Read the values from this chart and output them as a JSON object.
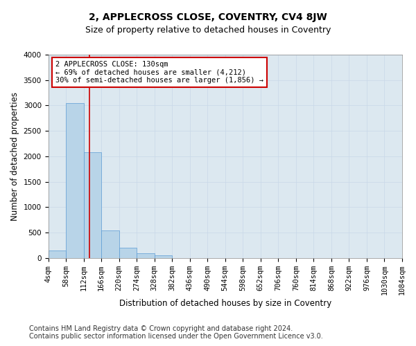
{
  "title": "2, APPLECROSS CLOSE, COVENTRY, CV4 8JW",
  "subtitle": "Size of property relative to detached houses in Coventry",
  "xlabel": "Distribution of detached houses by size in Coventry",
  "ylabel": "Number of detached properties",
  "footer_line1": "Contains HM Land Registry data © Crown copyright and database right 2024.",
  "footer_line2": "Contains public sector information licensed under the Open Government Licence v3.0.",
  "property_size": 130,
  "annotation_line1": "2 APPLECROSS CLOSE: 130sqm",
  "annotation_line2": "← 69% of detached houses are smaller (4,212)",
  "annotation_line3": "30% of semi-detached houses are larger (1,856) →",
  "bin_edges": [
    4,
    58,
    112,
    166,
    220,
    274,
    328,
    382,
    436,
    490,
    544,
    598,
    652,
    706,
    760,
    814,
    868,
    922,
    976,
    1030,
    1084
  ],
  "bin_counts": [
    150,
    3050,
    2080,
    540,
    210,
    90,
    55,
    0,
    0,
    0,
    0,
    0,
    0,
    0,
    0,
    0,
    0,
    0,
    0,
    0
  ],
  "bar_color": "#b8d4e8",
  "bar_edge_color": "#5b9bd5",
  "vline_color": "#cc0000",
  "vline_x": 130,
  "grid_color": "#c8d8e8",
  "background_color": "#dce8f0",
  "ylim": [
    0,
    4000
  ],
  "yticks": [
    0,
    500,
    1000,
    1500,
    2000,
    2500,
    3000,
    3500,
    4000
  ],
  "annotation_box_color": "#ffffff",
  "annotation_box_edge": "#cc0000",
  "title_fontsize": 10,
  "subtitle_fontsize": 9,
  "axis_label_fontsize": 8.5,
  "tick_fontsize": 7.5,
  "annotation_fontsize": 7.5,
  "footer_fontsize": 7
}
